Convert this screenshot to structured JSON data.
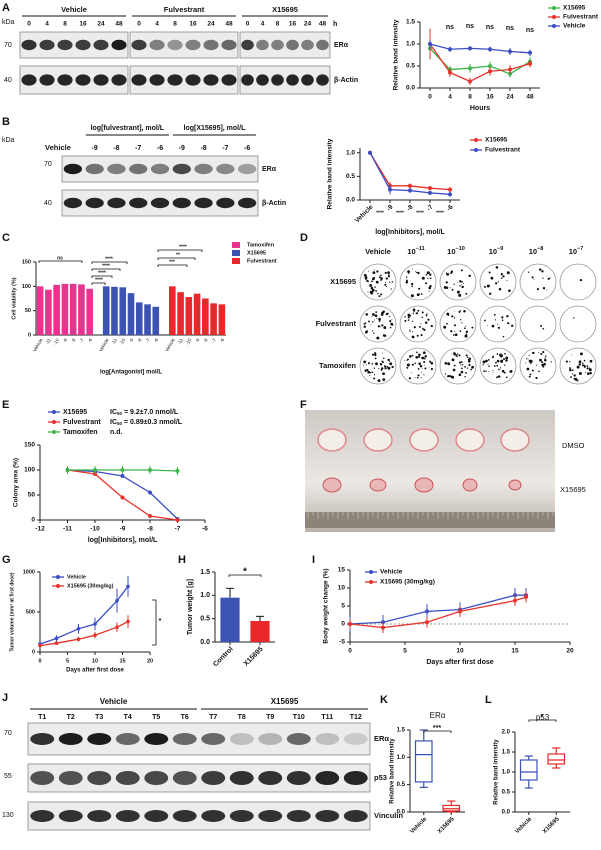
{
  "panel_labels": [
    "A",
    "B",
    "C",
    "D",
    "E",
    "F",
    "G",
    "H",
    "I",
    "J",
    "K",
    "L"
  ],
  "blot_a": {
    "unit": "kDa",
    "groups": [
      "Vehicle",
      "Fulvestrant",
      "X15695"
    ],
    "lanes": [
      "0",
      "4",
      "8",
      "16",
      "24",
      "48"
    ],
    "time_unit": "h",
    "markers": [
      "70",
      "40"
    ],
    "proteins": [
      "ERα",
      "β-Actin"
    ]
  },
  "blot_b": {
    "vehicle": "Vehicle",
    "groups": [
      "log[fulvestrant], mol/L",
      "log[X15695], mol/L"
    ],
    "lanes": [
      "-9",
      "-8",
      "-7",
      "-6"
    ],
    "unit": "kDa",
    "markers": [
      "70",
      "40"
    ],
    "proteins": [
      "ERα",
      "β-Actin"
    ]
  },
  "colony_plates": {
    "vehicle": "Vehicle",
    "base": "10",
    "exponents": [
      "−11",
      "−10",
      "−9",
      "−8",
      "−7"
    ],
    "rows": [
      "X15695",
      "Fulvestrant",
      "Tamoxifen"
    ]
  },
  "xenograft_photo": {
    "labels": [
      "DMSO",
      "X15695"
    ]
  },
  "blot_j": {
    "groups": [
      "Vehicle",
      "X15695"
    ],
    "lanes": [
      "T1",
      "T2",
      "T3",
      "T4",
      "T5",
      "T6",
      "T7",
      "T8",
      "T9",
      "T10",
      "T11",
      "T12"
    ],
    "markers": [
      "70",
      "55",
      "130"
    ],
    "proteins": [
      "ERα",
      "p53",
      "Vinculin"
    ]
  },
  "chart_data": [
    {
      "type": "line",
      "ylabel": "Relative band intensity",
      "xlabel": "Hours",
      "categories": [
        "0",
        "4",
        "8",
        "16",
        "24",
        "48"
      ],
      "ylim": [
        0,
        1.5
      ],
      "yticks": [
        {
          "value": 0,
          "label": "0.0"
        },
        {
          "value": 0.5,
          "label": "0.5"
        },
        {
          "value": 1,
          "label": "1.0"
        },
        {
          "value": 1.5,
          "label": "1.5"
        }
      ],
      "series": [
        {
          "name": "X15695",
          "color": "#3cb54a",
          "values": [
            0.9,
            0.42,
            0.45,
            0.5,
            0.32,
            0.6
          ],
          "errors": [
            0.2,
            0.08,
            0.1,
            0.1,
            0.08,
            0.1
          ]
        },
        {
          "name": "Fulvestrant",
          "color": "#e8322b",
          "values": [
            1.0,
            0.35,
            0.15,
            0.38,
            0.42,
            0.55
          ],
          "errors": [
            0.35,
            0.1,
            0.08,
            0.1,
            0.1,
            0.08
          ]
        },
        {
          "name": "Vehicle",
          "color": "#3b4fc4",
          "values": [
            1.0,
            0.88,
            0.9,
            0.88,
            0.83,
            0.8
          ],
          "errors": [
            0.1,
            0.06,
            0.05,
            0.06,
            0.08,
            0.07
          ]
        }
      ],
      "annotations": [
        "ns",
        "ns",
        "ns",
        "ns",
        "ns"
      ],
      "legend": "top-right"
    },
    {
      "type": "line",
      "ylabel": "Relative band intensity",
      "xlabel": "log[Inhibitors], mol/L",
      "categories": [
        "Vehicle",
        "-9",
        "-8",
        "-7",
        "-6"
      ],
      "ylim": [
        0,
        1.1
      ],
      "yticks": [
        {
          "value": 0,
          "label": "0.0"
        },
        {
          "value": 0.5,
          "label": "0.5"
        },
        {
          "value": 1,
          "label": "1.0"
        }
      ],
      "series": [
        {
          "name": "X15695",
          "color": "#e8322b",
          "values": [
            1.0,
            0.3,
            0.3,
            0.25,
            0.22
          ],
          "errors": [
            0,
            0.08,
            0.05,
            0.05,
            0.05
          ]
        },
        {
          "name": "Fulvestrant",
          "color": "#3b4fc4",
          "values": [
            1.0,
            0.22,
            0.2,
            0.15,
            0.12
          ],
          "errors": [
            0,
            0.1,
            0.05,
            0.04,
            0.05
          ]
        }
      ],
      "annotations": [
        "****",
        "****",
        "****",
        "****"
      ],
      "legend": "top-right"
    },
    {
      "type": "bar",
      "ylabel": "Cell viability (%)",
      "xlabel": "log[Antagonist] mol/L",
      "categories": [
        "Vehicle",
        "-11",
        "-10",
        "-9",
        "-8",
        "-7",
        "-6"
      ],
      "ylim": [
        0,
        150
      ],
      "yticks": [
        0,
        50,
        100,
        150
      ],
      "series": [
        {
          "name": "Tamoxifen",
          "color": "#e8338f",
          "values": [
            100,
            93,
            103,
            105,
            105,
            104,
            95
          ]
        },
        {
          "name": "X15695",
          "color": "#3b53b3",
          "values": [
            100,
            99,
            98,
            86,
            67,
            63,
            58
          ]
        },
        {
          "name": "Fulvestrant",
          "color": "#e8282b",
          "values": [
            100,
            88,
            78,
            85,
            75,
            65,
            63
          ]
        }
      ],
      "annotations": [
        "ns",
        "****",
        "****",
        "****",
        "****",
        "****",
        "**",
        "***"
      ],
      "legend": "top-right"
    },
    {
      "type": "line",
      "ylabel": "Colony area (%)",
      "xlabel": "log[Inhibitors], mol/L",
      "x": [
        -11,
        -10,
        -9,
        -8,
        -7
      ],
      "xlim": [
        -12,
        -6
      ],
      "xticks": [
        -12,
        -11,
        -10,
        -9,
        -8,
        -7,
        -6
      ],
      "ylim": [
        0,
        150
      ],
      "yticks": [
        0,
        50,
        100,
        150
      ],
      "series": [
        {
          "name": "X15695",
          "color": "#3b4fc4",
          "values": [
            100,
            97,
            88,
            55,
            2
          ],
          "note": {
            "prefix": "IC",
            "sub": "50",
            "text": " = 9.2±7.0 nmol/L"
          }
        },
        {
          "name": "Fulvestrant",
          "color": "#e8322b",
          "values": [
            100,
            92,
            45,
            8,
            0
          ],
          "note": {
            "prefix": "IC",
            "sub": "50",
            "text": " = 0.89±0.3 nmol/L"
          }
        },
        {
          "name": "Tamoxifen",
          "color": "#3cb54a",
          "values": [
            100,
            100,
            100,
            100,
            98
          ],
          "errors": [
            8,
            8,
            8,
            8,
            8
          ],
          "note": {
            "text": "n.d."
          }
        }
      ],
      "legend": "top-left"
    },
    {
      "type": "line",
      "ylabel": "Tumor volume (mm³ at first dose)",
      "xlabel": "Days after first dose",
      "x": [
        0,
        3,
        7,
        10,
        14,
        16
      ],
      "xlim": [
        0,
        20
      ],
      "xticks": [
        0,
        5,
        10,
        15,
        20
      ],
      "ylim": [
        0,
        1000
      ],
      "yticks": [
        0,
        500,
        1000
      ],
      "series": [
        {
          "name": "Vehicle",
          "color": "#3b4fc4",
          "values": [
            100,
            170,
            290,
            350,
            640,
            820
          ],
          "errors": [
            20,
            40,
            60,
            80,
            150,
            130
          ]
        },
        {
          "name": "X15695 (30mg/kg)",
          "color": "#e8322b",
          "values": [
            80,
            110,
            160,
            210,
            310,
            380
          ],
          "errors": [
            20,
            20,
            30,
            40,
            60,
            80
          ]
        }
      ],
      "annotations": [
        "*"
      ],
      "legend": "top-left"
    },
    {
      "type": "bar",
      "ylabel": "Tumor weight [g]",
      "categories": [
        "Control",
        "X15695"
      ],
      "values": [
        0.95,
        0.45
      ],
      "errors": [
        0.2,
        0.1
      ],
      "colors": [
        "#3b53b3",
        "#e8282b"
      ],
      "ylim": [
        0,
        1.5
      ],
      "yticks": [
        {
          "value": 0,
          "label": "0.0"
        },
        {
          "value": 0.5,
          "label": "0.5"
        },
        {
          "value": 1,
          "label": "1.0"
        },
        {
          "value": 1.5,
          "label": "1.5"
        }
      ],
      "annotations": [
        "*"
      ]
    },
    {
      "type": "line",
      "ylabel": "Body weight change (%)",
      "xlabel": "Days after first dose",
      "x": [
        0,
        3,
        7,
        10,
        15,
        16
      ],
      "xlim": [
        0,
        20
      ],
      "xticks": [
        0,
        5,
        10,
        15,
        20
      ],
      "ylim": [
        -5,
        15
      ],
      "yticks": [
        -5,
        0,
        5,
        10,
        15
      ],
      "series": [
        {
          "name": "Vehicle",
          "color": "#3b4fc4",
          "values": [
            0,
            0.5,
            3.5,
            4,
            8,
            8
          ],
          "errors": [
            2,
            2,
            2,
            2,
            2,
            2
          ]
        },
        {
          "name": "X15695 (30mg/kg)",
          "color": "#e8322b",
          "values": [
            0,
            -1,
            0.5,
            3.5,
            6.5,
            7.5
          ],
          "errors": [
            1.5,
            1.5,
            1.5,
            1.5,
            1.5,
            1.5
          ]
        }
      ],
      "legend": "top-left"
    },
    {
      "type": "box",
      "title": "ERα",
      "ylabel": "Relative band intensity",
      "categories": [
        "Vehicle",
        "X15695"
      ],
      "stats": [
        [
          0.45,
          0.55,
          1.05,
          1.3,
          1.5
        ],
        [
          0,
          0.02,
          0.06,
          0.12,
          0.2
        ]
      ],
      "colors": [
        "#3b53b3",
        "#e8282b"
      ],
      "ylim": [
        0,
        1.5
      ],
      "yticks": [
        {
          "value": 0,
          "label": "0.0"
        },
        {
          "value": 0.5,
          "label": "0.5"
        },
        {
          "value": 1,
          "label": "1.0"
        },
        {
          "value": 1.5,
          "label": "1.5"
        }
      ],
      "annotations": [
        "***"
      ]
    },
    {
      "type": "box",
      "title": "p53",
      "ylabel": "Relative band intensity",
      "categories": [
        "Vehicle",
        "X15695"
      ],
      "stats": [
        [
          0.6,
          0.8,
          1.0,
          1.3,
          1.4
        ],
        [
          1.1,
          1.2,
          1.3,
          1.45,
          1.6
        ]
      ],
      "colors": [
        "#3b53b3",
        "#e8282b"
      ],
      "ylim": [
        0,
        2
      ],
      "yticks": [
        {
          "value": 0,
          "label": "0.0"
        },
        {
          "value": 0.5,
          "label": "0.5"
        },
        {
          "value": 1,
          "label": "1.0"
        },
        {
          "value": 1.5,
          "label": "1.5"
        },
        {
          "value": 2,
          "label": "2.0"
        }
      ],
      "annotations": [
        "*"
      ]
    }
  ]
}
